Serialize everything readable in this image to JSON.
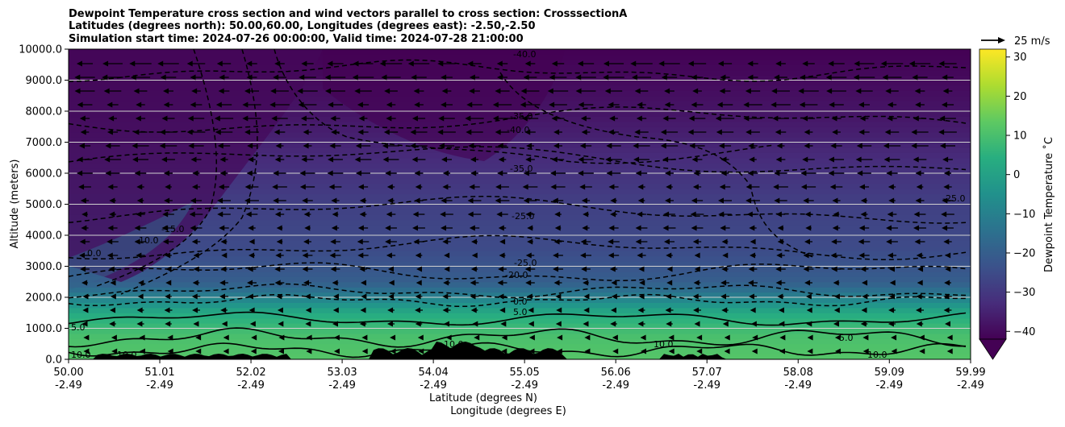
{
  "chart_data": {
    "type": "contourf",
    "title_lines": [
      "Dewpoint Temperature cross section and wind vectors parallel to cross section: CrosssectionA",
      "Latitudes (degrees north): 50.00,60.00, Longitudes (degrees east): -2.50,-2.50",
      "Simulation start time: 2024-07-26 00:00:00, Valid time: 2024-07-28 21:00:00"
    ],
    "ylabel": "Altitude (meters)",
    "xlabel_line1": "Latitude (degrees N)",
    "xlabel_line2": "Longitude (degrees E)",
    "ylim": [
      0,
      10000
    ],
    "yticks": [
      "0.0",
      "1000.0",
      "2000.0",
      "3000.0",
      "4000.0",
      "5000.0",
      "6000.0",
      "7000.0",
      "8000.0",
      "9000.0",
      "10000.0"
    ],
    "x_range": [
      50.0,
      59.99
    ],
    "xticks": [
      {
        "lat": "50.00",
        "lon": "-2.49"
      },
      {
        "lat": "51.01",
        "lon": "-2.49"
      },
      {
        "lat": "52.02",
        "lon": "-2.49"
      },
      {
        "lat": "53.03",
        "lon": "-2.49"
      },
      {
        "lat": "54.04",
        "lon": "-2.49"
      },
      {
        "lat": "55.05",
        "lon": "-2.49"
      },
      {
        "lat": "56.06",
        "lon": "-2.49"
      },
      {
        "lat": "57.07",
        "lon": "-2.49"
      },
      {
        "lat": "58.08",
        "lon": "-2.49"
      },
      {
        "lat": "59.09",
        "lon": "-2.49"
      },
      {
        "lat": "59.99",
        "lon": "-2.49"
      }
    ],
    "grid": "horizontal",
    "colorbar": {
      "label": "Dewpoint Temperature ˚C",
      "range": [
        -42,
        32
      ],
      "ticks": [
        "30",
        "20",
        "10",
        "0",
        "−10",
        "−20",
        "−30",
        "−40"
      ],
      "colormap": "viridis",
      "extend": "min"
    },
    "quiver_key": {
      "label": "25 m/s"
    },
    "dewpoint_profile": [
      {
        "alt": 0,
        "temp": 12
      },
      {
        "alt": 800,
        "temp": 10
      },
      {
        "alt": 1500,
        "temp": 3
      },
      {
        "alt": 2000,
        "temp": -10
      },
      {
        "alt": 2500,
        "temp": -20
      },
      {
        "alt": 3500,
        "temp": -25
      },
      {
        "alt": 5000,
        "temp": -28
      },
      {
        "alt": 6500,
        "temp": -33
      },
      {
        "alt": 8000,
        "temp": -38
      },
      {
        "alt": 10000,
        "temp": -42
      }
    ],
    "contour_labels": [
      "10.0",
      "5.0",
      "0.0",
      "-10.0",
      "-15.0",
      "-20.0",
      "-25.0",
      "-35.0",
      "-40.0"
    ]
  },
  "colors": {
    "viridis": [
      "#440154",
      "#482777",
      "#3f4a8a",
      "#31678e",
      "#26838f",
      "#1f9d8a",
      "#6cce5a",
      "#b6de2b",
      "#fee825"
    ],
    "terrain": "#000000",
    "gridline": "#d0d0d0"
  }
}
